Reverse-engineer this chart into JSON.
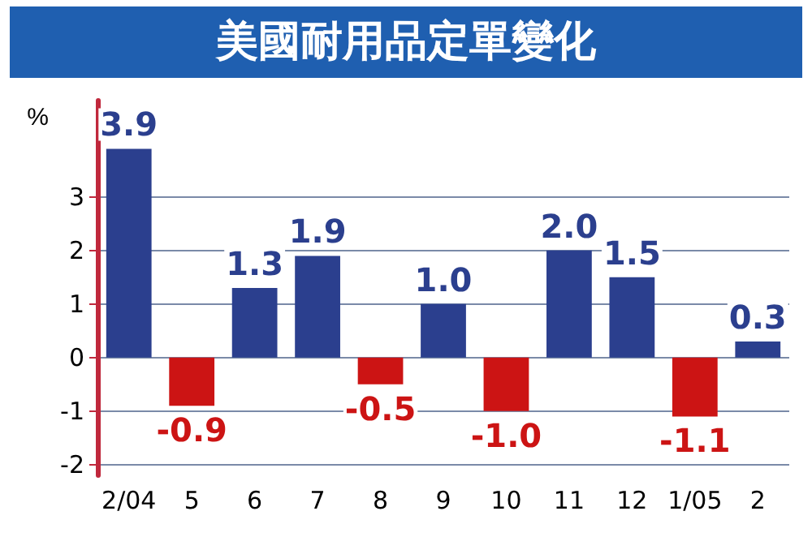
{
  "chart_data": {
    "type": "bar",
    "title": "美國耐用品定單變化",
    "ylabel": "%",
    "categories": [
      "2/04",
      "5",
      "6",
      "7",
      "8",
      "9",
      "10",
      "11",
      "12",
      "1/05",
      "2"
    ],
    "values": [
      3.9,
      -0.9,
      1.3,
      1.9,
      -0.5,
      1.0,
      -1.0,
      2.0,
      1.5,
      -1.1,
      0.3
    ],
    "colors": [
      "#2b3f8e",
      "#cc1414",
      "#2b3f8e",
      "#2b3f8e",
      "#cc1414",
      "#2b3f8e",
      "#cc1414",
      "#2b3f8e",
      "#2b3f8e",
      "#cc1414",
      "#2b3f8e"
    ],
    "value_labels": [
      "3.9",
      "-0.9",
      "1.3",
      "1.9",
      "-0.5",
      "1.0",
      "-1.0",
      "2.0",
      "1.5",
      "-1.1",
      "0.3"
    ],
    "ylim": [
      -2.2,
      4.8
    ],
    "yticks": [
      -2,
      -1,
      0,
      1,
      2,
      3
    ],
    "grid": "y"
  }
}
